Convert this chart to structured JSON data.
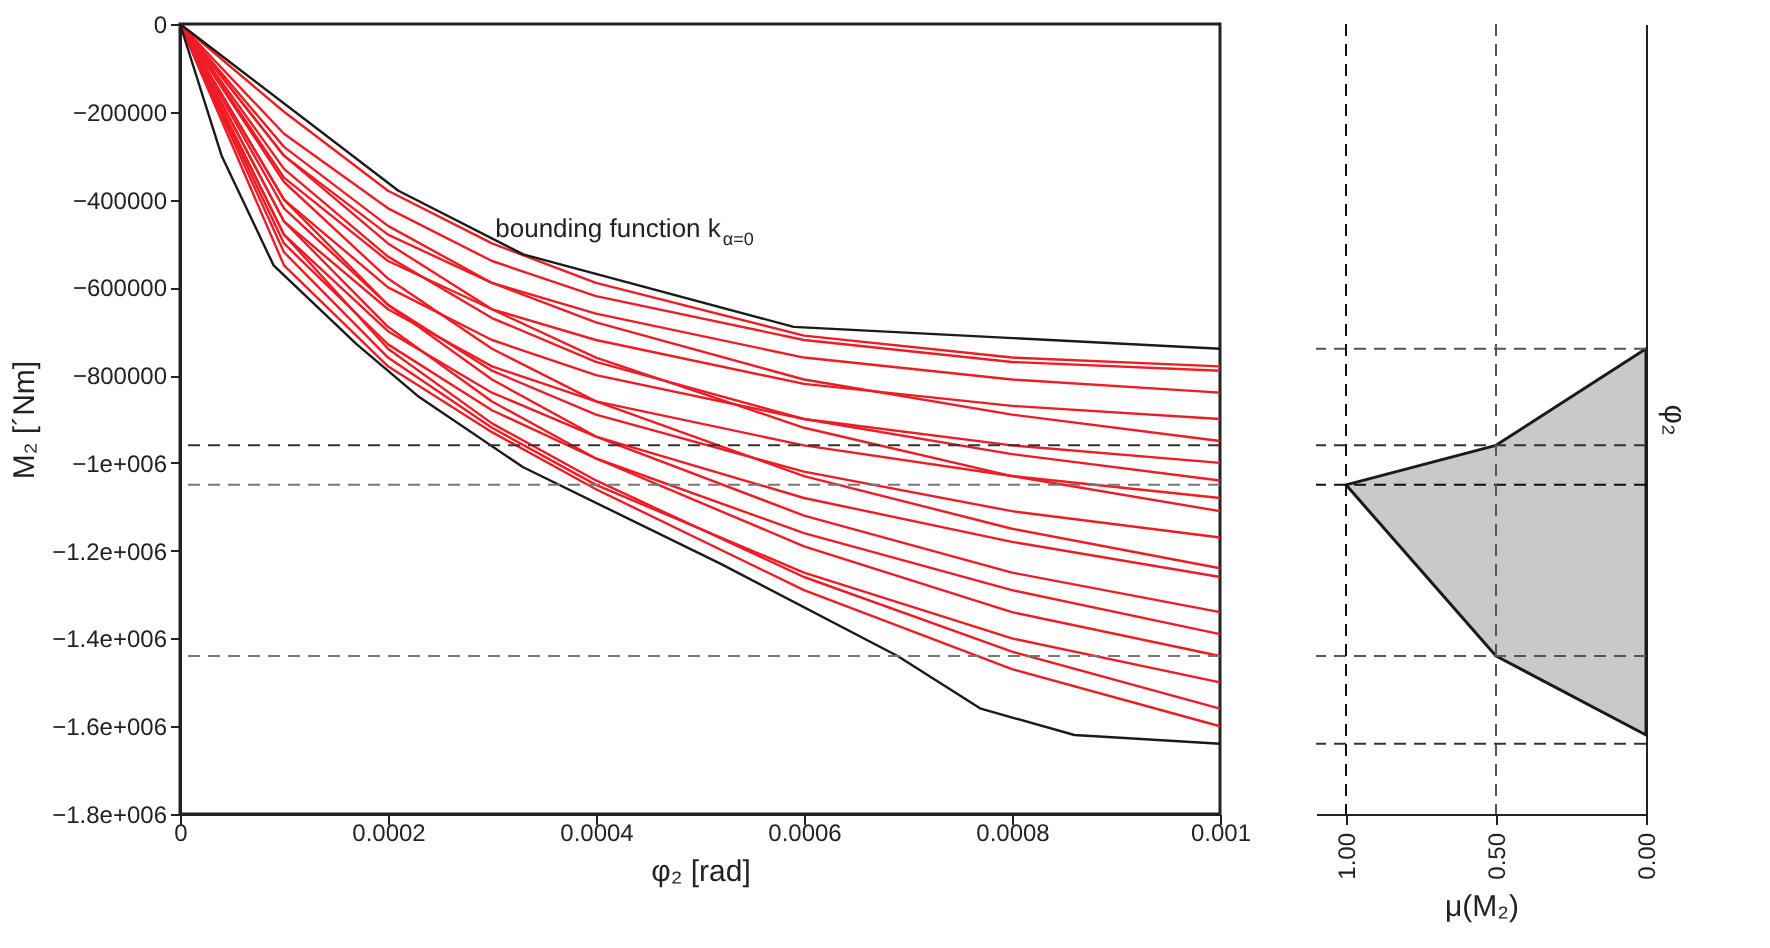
{
  "chart_data": [
    {
      "type": "line",
      "xlabel": "φ₂ [rad]",
      "ylabel": "M₂ [´Nm]",
      "xlim": [
        0,
        0.001
      ],
      "xticks": [
        0,
        0.0002,
        0.0004,
        0.0006,
        0.0008,
        0.001
      ],
      "ylim": [
        -1800000,
        0
      ],
      "yticks": [
        {
          "value": 0,
          "label": "0"
        },
        {
          "value": -200000,
          "label": "−200000"
        },
        {
          "value": -400000,
          "label": "−400000"
        },
        {
          "value": -600000,
          "label": "−600000"
        },
        {
          "value": -800000,
          "label": "−800000"
        },
        {
          "value": -1000000,
          "label": "−1e+006"
        },
        {
          "value": -1200000,
          "label": "−1.2e+006"
        },
        {
          "value": -1400000,
          "label": "−1.4e+006"
        },
        {
          "value": -1600000,
          "label": "−1.6e+006"
        },
        {
          "value": -1800000,
          "label": "−1.8e+006"
        }
      ],
      "x": [
        0,
        0.0001,
        0.0002,
        0.0003,
        0.0004,
        0.0006,
        0.0008,
        0.001
      ],
      "series": [
        {
          "color": "#ee1c25",
          "values": [
            0,
            -250000,
            -420000,
            -540000,
            -620000,
            -720000,
            -770000,
            -790000
          ]
        },
        {
          "color": "#ee1c25",
          "values": [
            0,
            -300000,
            -480000,
            -590000,
            -660000,
            -760000,
            -810000,
            -840000
          ]
        },
        {
          "color": "#ee1c25",
          "values": [
            0,
            -350000,
            -540000,
            -650000,
            -720000,
            -820000,
            -870000,
            -900000
          ]
        },
        {
          "color": "#ee1c25",
          "values": [
            0,
            -280000,
            -460000,
            -590000,
            -680000,
            -810000,
            -890000,
            -950000
          ]
        },
        {
          "color": "#ee1c25",
          "values": [
            0,
            -400000,
            -600000,
            -720000,
            -800000,
            -900000,
            -960000,
            -1000000
          ]
        },
        {
          "color": "#ee1c25",
          "values": [
            0,
            -330000,
            -530000,
            -670000,
            -770000,
            -900000,
            -980000,
            -1040000
          ]
        },
        {
          "color": "#ee1c25",
          "values": [
            0,
            -450000,
            -650000,
            -780000,
            -860000,
            -960000,
            -1030000,
            -1080000
          ]
        },
        {
          "color": "#ee1c25",
          "values": [
            0,
            -300000,
            -500000,
            -650000,
            -760000,
            -920000,
            -1030000,
            -1110000
          ]
        },
        {
          "color": "#ee1c25",
          "values": [
            0,
            -420000,
            -640000,
            -790000,
            -890000,
            -1020000,
            -1110000,
            -1170000
          ]
        },
        {
          "color": "#ee1c25",
          "values": [
            0,
            -360000,
            -580000,
            -740000,
            -860000,
            -1030000,
            -1150000,
            -1240000
          ]
        },
        {
          "color": "#ee1c25",
          "values": [
            0,
            -480000,
            -700000,
            -840000,
            -940000,
            -1080000,
            -1180000,
            -1260000
          ]
        },
        {
          "color": "#ee1c25",
          "values": [
            0,
            -400000,
            -640000,
            -810000,
            -940000,
            -1120000,
            -1250000,
            -1340000
          ]
        },
        {
          "color": "#ee1c25",
          "values": [
            0,
            -500000,
            -730000,
            -880000,
            -990000,
            -1160000,
            -1290000,
            -1390000
          ]
        },
        {
          "color": "#ee1c25",
          "values": [
            0,
            -450000,
            -690000,
            -860000,
            -990000,
            -1190000,
            -1340000,
            -1440000
          ]
        },
        {
          "color": "#ee1c25",
          "values": [
            0,
            -520000,
            -760000,
            -920000,
            -1050000,
            -1250000,
            -1400000,
            -1500000
          ]
        },
        {
          "color": "#ee1c25",
          "values": [
            0,
            -480000,
            -740000,
            -910000,
            -1040000,
            -1260000,
            -1430000,
            -1560000
          ]
        },
        {
          "color": "#ee1c25",
          "values": [
            0,
            -550000,
            -780000,
            -930000,
            -1060000,
            -1290000,
            -1470000,
            -1600000
          ]
        },
        {
          "color": "#ee1c25",
          "values": [
            0,
            -200000,
            -380000,
            -500000,
            -590000,
            -710000,
            -760000,
            -780000
          ]
        },
        {
          "color": "#1a1a1a",
          "x": [
            0,
            0.00021,
            0.00033,
            0.00059,
            0.001
          ],
          "values": [
            0,
            -380000,
            -525000,
            -690000,
            -740000
          ]
        },
        {
          "color": "#1a1a1a",
          "x": [
            0,
            4e-05,
            9e-05,
            0.00017,
            0.00023,
            0.00033,
            0.00052,
            0.00069,
            0.00077,
            0.00086,
            0.001
          ],
          "values": [
            0,
            -300000,
            -550000,
            -730000,
            -850000,
            -1010000,
            -1230000,
            -1440000,
            -1560000,
            -1620000,
            -1640000
          ]
        }
      ],
      "ref_lines": [
        {
          "axis": "y",
          "value": -960000,
          "color": "#333333",
          "line_style": "dashed"
        },
        {
          "axis": "y",
          "value": -1050000,
          "color": "#777777",
          "line_style": "dashed"
        },
        {
          "axis": "y",
          "value": -1440000,
          "color": "#777777",
          "line_style": "dashed"
        }
      ],
      "annotations": [
        "bounding function k$_{α=0}$"
      ]
    },
    {
      "type": "area",
      "orientation": "horizontal",
      "xlabel": "μ(M₂)",
      "ylabel": "φ₂",
      "tick_labels": "x",
      "xlim": [
        1.1,
        0
      ],
      "xticks": [
        {
          "value": 1,
          "label": "1.00"
        },
        {
          "value": 0.5,
          "label": "0.50"
        },
        {
          "value": 0,
          "label": "0.00"
        }
      ],
      "ylim": [
        -1800000,
        0
      ],
      "series": [
        {
          "color": "#c8c9cb",
          "x": [
            -740000,
            -960000,
            -1050000,
            -1440000,
            -1620000
          ],
          "values": [
            0,
            0.5,
            1,
            0.5,
            0
          ]
        }
      ],
      "ref_lines": [
        {
          "axis": "y",
          "value": -740000,
          "color": "#555555",
          "line_style": "dashed"
        },
        {
          "axis": "y",
          "value": -960000,
          "color": "#333333",
          "line_style": "dashed"
        },
        {
          "axis": "y",
          "value": -1050000,
          "color": "#111111",
          "line_style": "dashed"
        },
        {
          "axis": "y",
          "value": -1440000,
          "color": "#555555",
          "line_style": "dashed"
        },
        {
          "axis": "y",
          "value": -1640000,
          "color": "#333333",
          "line_style": "dashed"
        },
        {
          "axis": "x",
          "value": 1,
          "color": "#111111",
          "line_style": "dashed"
        },
        {
          "axis": "x",
          "value": 0.5,
          "color": "#555555",
          "line_style": "dashed"
        }
      ]
    }
  ]
}
